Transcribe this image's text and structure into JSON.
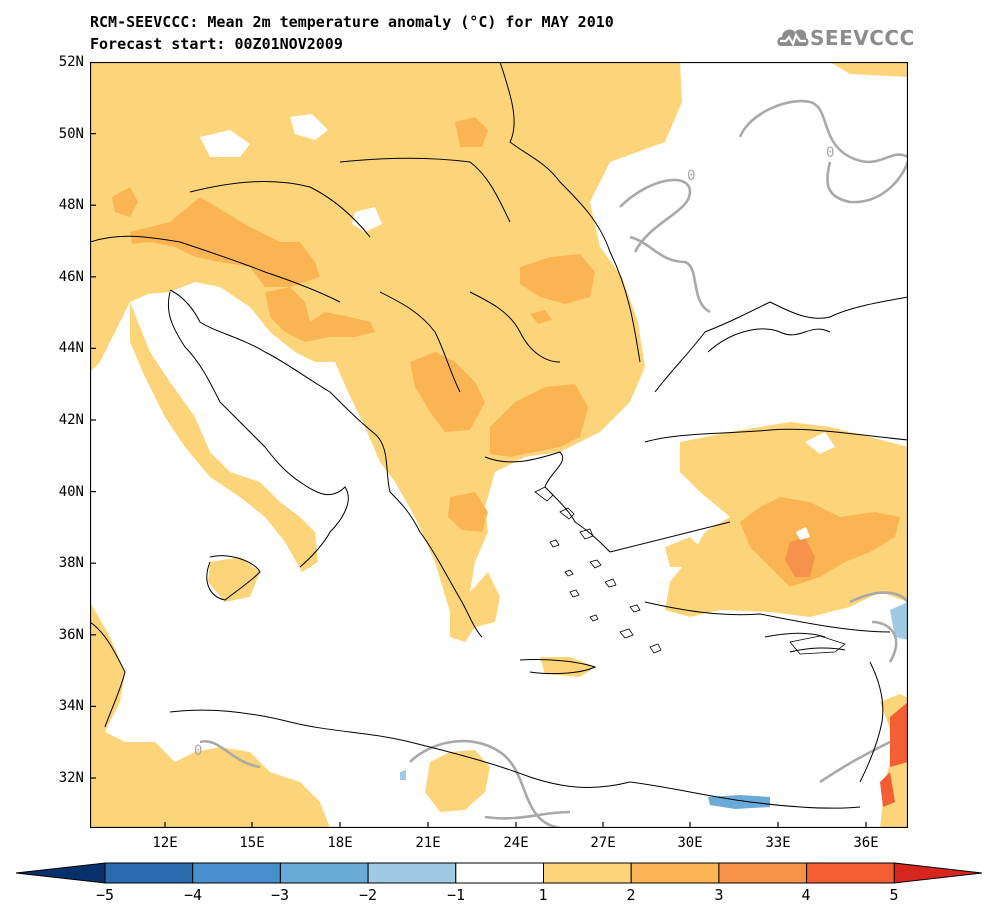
{
  "header": {
    "title": "RCM-SEEVCCC: Mean 2m temperature anomaly (°C) for MAY 2010",
    "subtitle": "Forecast start: 00Z01NOV2009"
  },
  "logo": {
    "text": "SEEVCCC"
  },
  "axes": {
    "lat_labels": [
      "52N",
      "50N",
      "48N",
      "46N",
      "44N",
      "42N",
      "40N",
      "38N",
      "36N",
      "34N",
      "32N"
    ],
    "lon_labels": [
      "12E",
      "15E",
      "18E",
      "21E",
      "24E",
      "27E",
      "30E",
      "33E",
      "36E"
    ]
  },
  "contour_label": "0",
  "colorbar": {
    "ticks": [
      "−5",
      "−4",
      "−3",
      "−2",
      "−1",
      "1",
      "2",
      "3",
      "4",
      "5"
    ],
    "colors": [
      "#08306b",
      "#2b6aae",
      "#4a8fcd",
      "#6aaad8",
      "#9fcae3",
      "#ffffff",
      "#fcd57a",
      "#fbb454",
      "#f7924a",
      "#f55d32",
      "#d7261e"
    ]
  },
  "map_colors": {
    "anomaly_1_2": "#fcd57a",
    "anomaly_2_3": "#fbb454",
    "anomaly_3_4": "#f7924a",
    "anomaly_neg_1_2": "#9fcae3",
    "anomaly_neg_2_3": "#6aaad8",
    "zero_contour": "#a9a9a9",
    "land_outline": "#000000"
  }
}
